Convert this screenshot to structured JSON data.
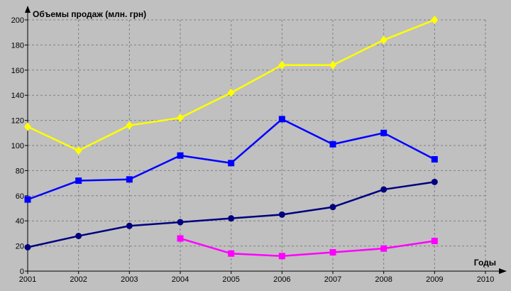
{
  "chart_data": {
    "type": "line",
    "title": "",
    "ylabel": "Объемы продаж (млн. грн)",
    "xlabel": "Годы",
    "xlim": [
      2001,
      2010
    ],
    "ylim": [
      0,
      200
    ],
    "x_ticks": [
      2001,
      2002,
      2003,
      2004,
      2005,
      2006,
      2007,
      2008,
      2009,
      2010
    ],
    "y_ticks": [
      0,
      20,
      40,
      60,
      80,
      100,
      120,
      140,
      160,
      180,
      200
    ],
    "grid": true,
    "legend": "none",
    "background": "#c0c0c0",
    "series": [
      {
        "color": "#ffff00",
        "marker": "diamond",
        "x": [
          2001,
          2002,
          2003,
          2004,
          2005,
          2006,
          2007,
          2008,
          2009
        ],
        "values": [
          115,
          96,
          116,
          122,
          142,
          164,
          164,
          184,
          200
        ]
      },
      {
        "color": "#0000ff",
        "marker": "square",
        "x": [
          2001,
          2002,
          2003,
          2004,
          2005,
          2006,
          2007,
          2008,
          2009
        ],
        "values": [
          57,
          72,
          73,
          92,
          86,
          121,
          101,
          110,
          89
        ]
      },
      {
        "color": "#000080",
        "marker": "circle",
        "x": [
          2001,
          2002,
          2003,
          2004,
          2005,
          2006,
          2007,
          2008,
          2009
        ],
        "values": [
          19,
          28,
          36,
          39,
          42,
          45,
          51,
          65,
          71
        ]
      },
      {
        "color": "#ff00ff",
        "marker": "square",
        "x": [
          2004,
          2005,
          2006,
          2007,
          2008,
          2009
        ],
        "values": [
          26,
          14,
          12,
          15,
          18,
          24
        ]
      }
    ]
  }
}
